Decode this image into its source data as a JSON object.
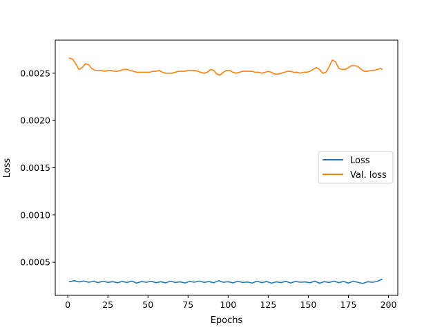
{
  "chart_data": {
    "type": "line",
    "title": "",
    "xlabel": "Epochs",
    "ylabel": "Loss",
    "xlim": [
      -7.8,
      205.8
    ],
    "ylim": [
      0.00015,
      0.00285
    ],
    "xticks": [
      0,
      25,
      50,
      75,
      100,
      125,
      150,
      175,
      200
    ],
    "xtick_labels": [
      "0",
      "25",
      "50",
      "75",
      "100",
      "125",
      "150",
      "175",
      "200"
    ],
    "yticks": [
      0.0005,
      0.001,
      0.0015,
      0.002,
      0.0025
    ],
    "ytick_labels": [
      "0.0005",
      "0.0010",
      "0.0015",
      "0.0020",
      "0.0025"
    ],
    "legend_position": "center-right",
    "grid": false,
    "series": [
      {
        "name": "Loss",
        "color": "#1f77b4",
        "x": [
          1,
          4,
          7,
          10,
          13,
          16,
          19,
          22,
          25,
          28,
          31,
          34,
          37,
          40,
          43,
          46,
          49,
          52,
          55,
          58,
          61,
          64,
          67,
          70,
          73,
          76,
          79,
          82,
          85,
          88,
          91,
          94,
          97,
          100,
          103,
          106,
          109,
          112,
          115,
          118,
          121,
          124,
          127,
          130,
          133,
          136,
          139,
          142,
          145,
          148,
          151,
          154,
          157,
          160,
          163,
          166,
          169,
          172,
          175,
          178,
          181,
          184,
          187,
          190,
          193,
          196
        ],
        "y": [
          0.000295,
          0.000305,
          0.000292,
          0.000302,
          0.000288,
          0.000298,
          0.000285,
          0.0003,
          0.000287,
          0.000295,
          0.000283,
          0.000297,
          0.000286,
          0.000301,
          0.00028,
          0.000296,
          0.000288,
          0.000299,
          0.000284,
          0.000294,
          0.000282,
          0.0003,
          0.000286,
          0.000293,
          0.000281,
          0.000297,
          0.000289,
          0.000302,
          0.000287,
          0.000296,
          0.000283,
          0.000305,
          0.000288,
          0.000294,
          0.000282,
          0.000299,
          0.000286,
          0.000291,
          0.00028,
          0.0003,
          0.000284,
          0.000296,
          0.000279,
          0.000293,
          0.000285,
          0.000298,
          0.000281,
          0.000297,
          0.000289,
          0.000292,
          0.000283,
          0.0003,
          0.000278,
          0.000295,
          0.000286,
          0.000301,
          0.000284,
          0.000297,
          0.00028,
          0.000299,
          0.000287,
          0.000276,
          0.000294,
          0.000288,
          0.000298,
          0.00032
        ]
      },
      {
        "name": "Val. loss",
        "color": "#ff7f0e",
        "x": [
          1,
          3,
          5,
          7,
          9,
          11,
          13,
          15,
          17,
          19,
          21,
          23,
          25,
          27,
          29,
          31,
          33,
          35,
          37,
          39,
          41,
          43,
          45,
          47,
          49,
          51,
          53,
          55,
          57,
          59,
          61,
          63,
          65,
          67,
          69,
          71,
          73,
          75,
          77,
          79,
          81,
          83,
          85,
          87,
          89,
          91,
          93,
          95,
          97,
          99,
          101,
          103,
          105,
          107,
          109,
          111,
          113,
          115,
          117,
          119,
          121,
          123,
          125,
          127,
          129,
          131,
          133,
          135,
          137,
          139,
          141,
          143,
          145,
          147,
          149,
          151,
          153,
          155,
          157,
          159,
          161,
          163,
          165,
          167,
          169,
          171,
          173,
          175,
          177,
          179,
          181,
          183,
          185,
          187,
          189,
          191,
          193,
          195,
          196
        ],
        "y": [
          0.00266,
          0.00265,
          0.0026,
          0.00254,
          0.00256,
          0.0026,
          0.00259,
          0.00255,
          0.00253,
          0.00253,
          0.00253,
          0.00252,
          0.00253,
          0.00253,
          0.00252,
          0.00252,
          0.00253,
          0.00254,
          0.00254,
          0.00253,
          0.00252,
          0.00251,
          0.00251,
          0.00251,
          0.00251,
          0.00251,
          0.00252,
          0.00252,
          0.00253,
          0.00251,
          0.0025,
          0.0025,
          0.0025,
          0.00251,
          0.00252,
          0.00252,
          0.00252,
          0.00253,
          0.00253,
          0.00253,
          0.00252,
          0.00251,
          0.0025,
          0.00251,
          0.00254,
          0.00253,
          0.00249,
          0.00248,
          0.00251,
          0.00253,
          0.00253,
          0.00251,
          0.0025,
          0.00251,
          0.00252,
          0.00252,
          0.00252,
          0.00252,
          0.00251,
          0.00251,
          0.0025,
          0.00251,
          0.00252,
          0.00251,
          0.00249,
          0.00249,
          0.0025,
          0.00251,
          0.00252,
          0.00252,
          0.00251,
          0.00251,
          0.0025,
          0.00251,
          0.00251,
          0.00252,
          0.00254,
          0.00256,
          0.00254,
          0.0025,
          0.00251,
          0.00257,
          0.00264,
          0.00262,
          0.00255,
          0.00254,
          0.00254,
          0.00256,
          0.00258,
          0.00258,
          0.00257,
          0.00254,
          0.00252,
          0.00252,
          0.00253,
          0.00253,
          0.00254,
          0.00255,
          0.00254
        ]
      }
    ]
  }
}
